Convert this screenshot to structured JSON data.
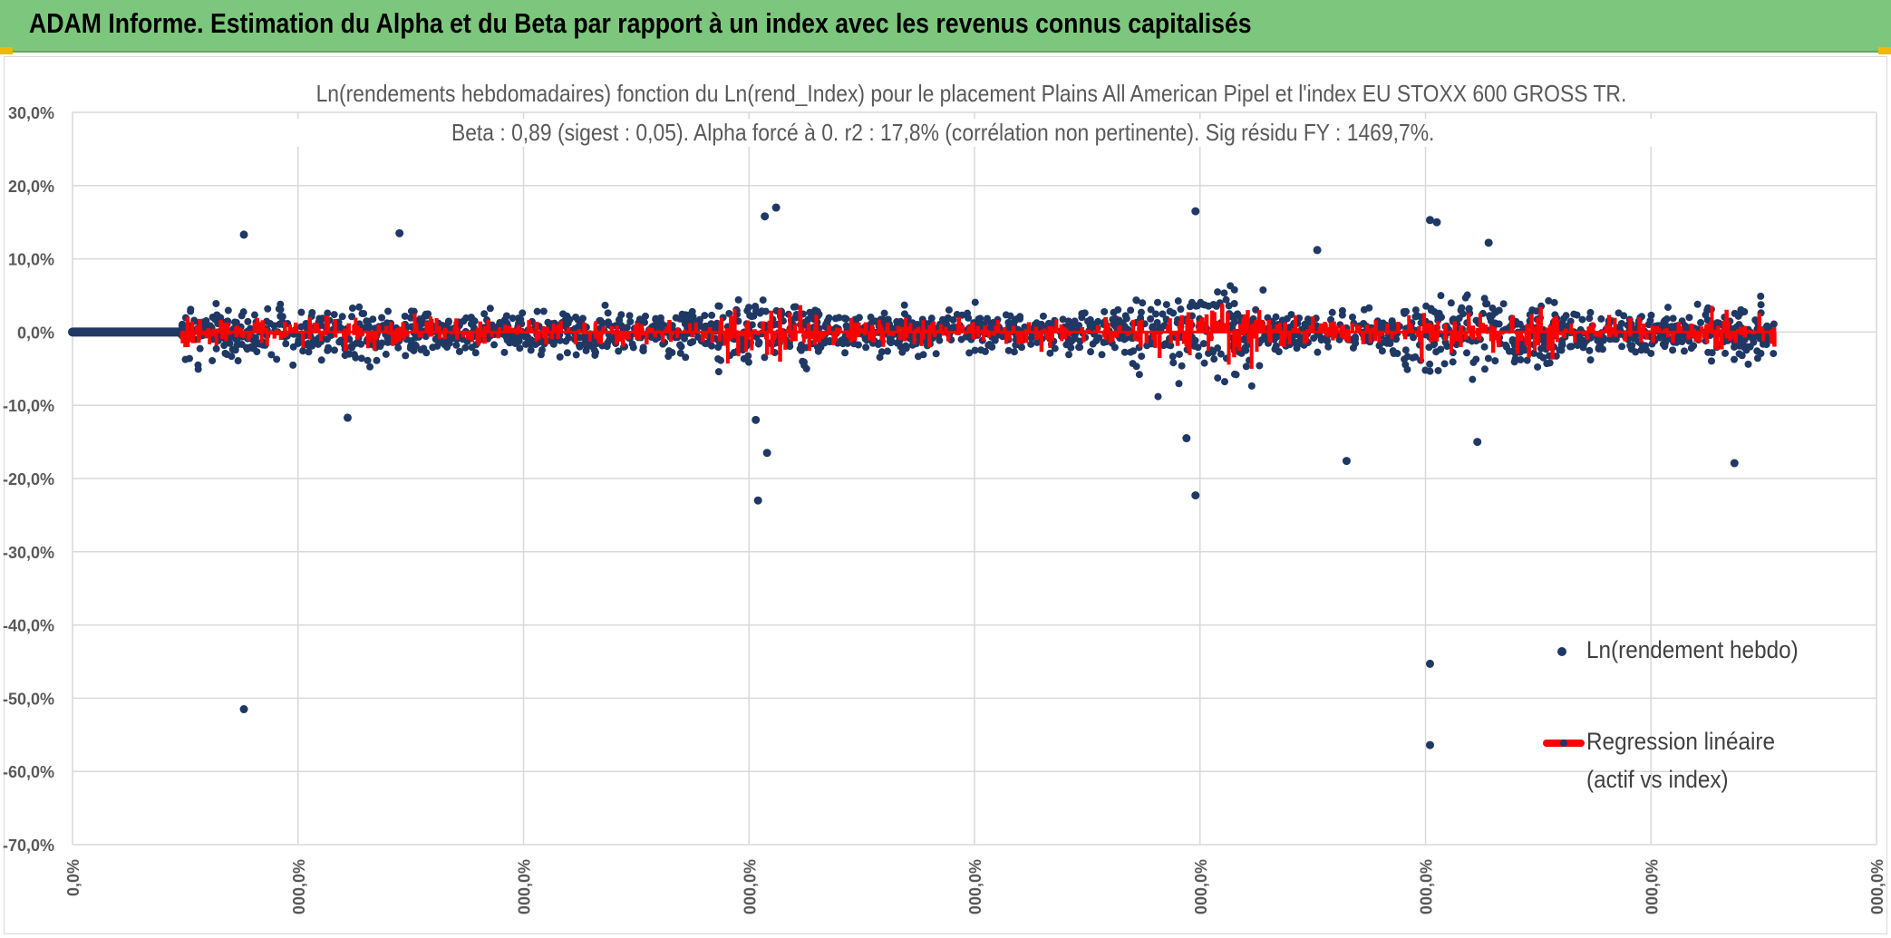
{
  "header": {
    "title": "ADAM Informe. Estimation du Alpha et du Beta par rapport à un index avec les revenus connus capitalisés"
  },
  "colors": {
    "banner": "#7dc67d",
    "points": "#1f3864",
    "regression": "#ff0000",
    "grid": "#d9d9d9"
  },
  "chart_data": {
    "type": "scatter",
    "title": "Ln(rendements hebdomadaires) fonction du Ln(rend_Index) pour le placement Plains All American Pipel et l'index EU STOXX 600 GROSS TR.",
    "subtitle": "Beta : 0,89 (sigest : 0,05). Alpha forcé à 0. r2 : 17,8% (corrélation non pertinente). Sig résidu FY : 1469,7%.",
    "y_tick_labels": [
      "30,0%",
      "20,0%",
      "10,0%",
      "0,0%",
      "-10,0%",
      "-20,0%",
      "-30,0%",
      "-40,0%",
      "-50,0%",
      "-60,0%",
      "-70,0%"
    ],
    "x_tick_labels": [
      "0,0%",
      "000,0%",
      "000,0%",
      "000,0%",
      "000,0%",
      "000,0%",
      "000,0%",
      "000,0%",
      "000,0%"
    ],
    "ylim": [
      -70,
      30
    ],
    "xlim": [
      0,
      8
    ],
    "grid": true,
    "legend_position": "right",
    "series": [
      {
        "name": "Ln(rendement hebdo)",
        "kind": "points",
        "outliers": [
          {
            "x": 0.76,
            "y": 13.3
          },
          {
            "x": 1.45,
            "y": 13.5
          },
          {
            "x": 1.22,
            "y": -11.7
          },
          {
            "x": 0.76,
            "y": -51.5
          },
          {
            "x": 3.07,
            "y": 15.8
          },
          {
            "x": 3.12,
            "y": 17.0
          },
          {
            "x": 3.04,
            "y": -23.0
          },
          {
            "x": 3.08,
            "y": -16.5
          },
          {
            "x": 3.03,
            "y": -12.0
          },
          {
            "x": 4.98,
            "y": 16.5
          },
          {
            "x": 4.98,
            "y": -22.3
          },
          {
            "x": 4.94,
            "y": -14.5
          },
          {
            "x": 5.65,
            "y": -17.6
          },
          {
            "x": 6.02,
            "y": 15.3
          },
          {
            "x": 6.05,
            "y": 15.0
          },
          {
            "x": 6.02,
            "y": -45.3
          },
          {
            "x": 6.02,
            "y": -56.4
          },
          {
            "x": 6.23,
            "y": -15.0
          },
          {
            "x": 7.37,
            "y": -17.9
          },
          {
            "x": 6.28,
            "y": 12.2
          },
          {
            "x": 5.52,
            "y": 11.2
          }
        ]
      },
      {
        "name": "Regression linéaire (actif vs index)",
        "kind": "line",
        "beta": 0.89,
        "alpha": 0
      }
    ]
  },
  "legend": {
    "item1": "Ln(rendement hebdo)",
    "item2_line1": "Regression linéaire",
    "item2_line2": "(actif vs index)"
  }
}
